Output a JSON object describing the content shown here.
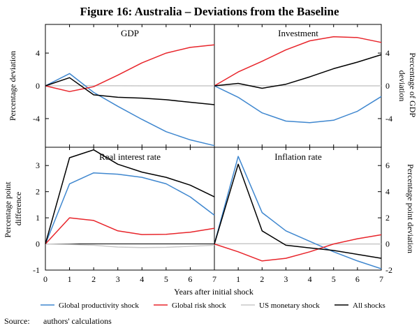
{
  "chart_data": {
    "type": "line",
    "title": "Figure 16: Australia – Deviations from the Baseline",
    "x": [
      0,
      1,
      2,
      3,
      4,
      5,
      6,
      7
    ],
    "xlim": [
      0,
      7
    ],
    "xticks": [
      "0",
      "1",
      "2",
      "3",
      "4",
      "5",
      "6",
      "7",
      "1",
      "2",
      "3",
      "4",
      "5",
      "6",
      "7"
    ],
    "xlabel": "Years after initial shock",
    "series_names": [
      "Global productivity shock",
      "Global risk shock",
      "US monetary shock",
      "All shocks"
    ],
    "colors": {
      "Global productivity shock": "#3f87cf",
      "Global risk shock": "#e8252b",
      "US monetary shock": "#c8c8c8",
      "All shocks": "#000000",
      "zero_line": "#000000"
    },
    "top_left_ylabel": "Percentage deviation",
    "top_right_ylabel": "Percentage of GDP deviation",
    "bottom_left_ylabel": "Percentage point difference",
    "bottom_right_ylabel": "Percentage point deviation",
    "panels": [
      {
        "id": "gdp",
        "title": "GDP",
        "ylim": [
          -7.5,
          7.5
        ],
        "yticks": [
          -4,
          0,
          4
        ],
        "ytick_labels": [
          "-4",
          "0",
          "4"
        ],
        "xoffset": 0,
        "series": [
          {
            "name": "Global productivity shock",
            "values": [
              0,
              1.5,
              -0.8,
              -2.5,
              -4.1,
              -5.6,
              -6.6,
              -7.3
            ]
          },
          {
            "name": "Global risk shock",
            "values": [
              0,
              -0.7,
              -0.1,
              1.3,
              2.8,
              4.0,
              4.7,
              5.0
            ]
          },
          {
            "name": "US monetary shock",
            "values": [
              0,
              0.02,
              0.02,
              0.01,
              0.0,
              0.0,
              0.0,
              0.0
            ]
          },
          {
            "name": "All shocks",
            "values": [
              0,
              1.0,
              -1.1,
              -1.4,
              -1.5,
              -1.7,
              -2.0,
              -2.3
            ]
          }
        ]
      },
      {
        "id": "investment",
        "title": "Investment",
        "ylim": [
          -7.5,
          7.5
        ],
        "yticks": [
          -4,
          0,
          4
        ],
        "ytick_labels": [
          "-4",
          "0",
          "4"
        ],
        "xoffset": 0,
        "series": [
          {
            "name": "Global productivity shock",
            "values": [
              0,
              -1.4,
              -3.3,
              -4.3,
              -4.5,
              -4.2,
              -3.1,
              -1.3
            ]
          },
          {
            "name": "Global risk shock",
            "values": [
              0,
              1.7,
              3.0,
              4.4,
              5.5,
              6.0,
              5.9,
              5.3
            ]
          },
          {
            "name": "US monetary shock",
            "values": [
              0,
              0.02,
              0.02,
              0.01,
              0.0,
              0.0,
              0.0,
              0.0
            ]
          },
          {
            "name": "All shocks",
            "values": [
              0,
              0.3,
              -0.3,
              0.2,
              1.1,
              2.1,
              2.9,
              3.8
            ]
          }
        ]
      },
      {
        "id": "real-interest-rate",
        "title": "Real interest rate",
        "ylim": [
          -1,
          3.7
        ],
        "yticks": [
          -1,
          0,
          1,
          2,
          3
        ],
        "ytick_labels": [
          "-1",
          "0",
          "1",
          "2",
          "3"
        ],
        "xoffset": 0,
        "series": [
          {
            "name": "Global productivity shock",
            "values": [
              0,
              2.3,
              2.72,
              2.67,
              2.55,
              2.3,
              1.8,
              1.1
            ]
          },
          {
            "name": "Global risk shock",
            "values": [
              0,
              1.0,
              0.9,
              0.5,
              0.36,
              0.37,
              0.45,
              0.6
            ]
          },
          {
            "name": "US monetary shock",
            "values": [
              0,
              -0.02,
              -0.05,
              -0.12,
              -0.14,
              -0.13,
              -0.09,
              -0.05
            ]
          },
          {
            "name": "All shocks",
            "values": [
              0,
              3.3,
              3.6,
              3.05,
              2.75,
              2.55,
              2.25,
              1.8
            ]
          }
        ]
      },
      {
        "id": "inflation-rate",
        "title": "Inflation rate",
        "ylim": [
          -2,
          7.4
        ],
        "yticks": [
          -2,
          0,
          2,
          4,
          6
        ],
        "ytick_labels": [
          "-2",
          "0",
          "2",
          "4",
          "6"
        ],
        "xoffset": 0,
        "series": [
          {
            "name": "Global productivity shock",
            "values": [
              0,
              6.7,
              2.4,
              1.0,
              0.2,
              -0.6,
              -1.3,
              -1.9
            ]
          },
          {
            "name": "Global risk shock",
            "values": [
              0,
              -0.6,
              -1.3,
              -1.1,
              -0.6,
              0.0,
              0.4,
              0.7
            ]
          },
          {
            "name": "US monetary shock",
            "values": [
              0,
              0.02,
              0.02,
              0.02,
              0.0,
              0.0,
              0.0,
              0.0
            ]
          },
          {
            "name": "All shocks",
            "values": [
              0,
              6.1,
              1.0,
              -0.1,
              -0.3,
              -0.5,
              -0.8,
              -1.1
            ]
          }
        ]
      }
    ],
    "source_label": "Source:",
    "source_text": "authors' calculations"
  }
}
